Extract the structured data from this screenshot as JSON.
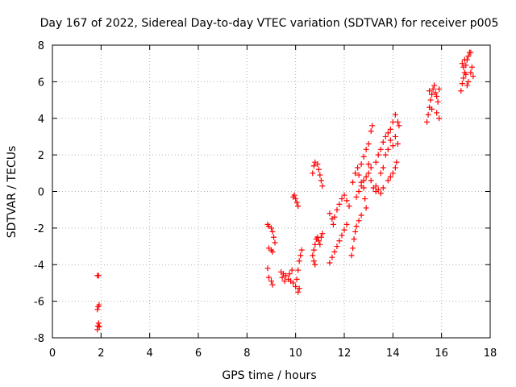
{
  "chart_data": {
    "type": "scatter",
    "title": "Day 167 of 2022, Sidereal Day-to-day VTEC variation (SDTVAR) for receiver p005",
    "xlabel": "GPS time / hours",
    "ylabel": "SDTVAR / TECUs",
    "xlim": [
      0,
      18
    ],
    "ylim": [
      -8,
      8
    ],
    "xticks": [
      "0",
      "2",
      "4",
      "6",
      "8",
      "10",
      "12",
      "14",
      "16",
      "18"
    ],
    "yticks": [
      "-8",
      "-6",
      "-4",
      "-2",
      "0",
      "2",
      "4",
      "6",
      "8"
    ],
    "grid": true,
    "marker": "plus",
    "color": "#ff0000",
    "series": [
      {
        "name": "p005",
        "points": [
          [
            1.85,
            -4.6
          ],
          [
            1.9,
            -4.6
          ],
          [
            1.88,
            -6.3
          ],
          [
            1.92,
            -6.2
          ],
          [
            1.85,
            -6.45
          ],
          [
            1.9,
            -7.2
          ],
          [
            1.87,
            -7.35
          ],
          [
            1.93,
            -7.4
          ],
          [
            1.85,
            -7.55
          ],
          [
            8.85,
            -1.8
          ],
          [
            8.9,
            -1.9
          ],
          [
            9.0,
            -2.0
          ],
          [
            9.05,
            -2.2
          ],
          [
            9.1,
            -2.5
          ],
          [
            9.15,
            -2.8
          ],
          [
            8.9,
            -3.1
          ],
          [
            9.0,
            -3.2
          ],
          [
            9.05,
            -3.3
          ],
          [
            8.85,
            -4.2
          ],
          [
            8.9,
            -4.7
          ],
          [
            9.0,
            -4.9
          ],
          [
            9.05,
            -5.1
          ],
          [
            9.4,
            -4.4
          ],
          [
            9.5,
            -4.5
          ],
          [
            9.6,
            -4.6
          ],
          [
            9.7,
            -4.8
          ],
          [
            9.8,
            -4.9
          ],
          [
            9.9,
            -5.0
          ],
          [
            9.45,
            -4.7
          ],
          [
            9.55,
            -4.9
          ],
          [
            9.75,
            -4.5
          ],
          [
            9.85,
            -4.3
          ],
          [
            10.0,
            -5.2
          ],
          [
            10.1,
            -5.5
          ],
          [
            10.15,
            -5.3
          ],
          [
            10.05,
            -4.8
          ],
          [
            10.1,
            -4.3
          ],
          [
            10.15,
            -3.8
          ],
          [
            10.2,
            -3.5
          ],
          [
            10.25,
            -3.2
          ],
          [
            9.9,
            -0.3
          ],
          [
            9.95,
            -0.2
          ],
          [
            10.0,
            -0.4
          ],
          [
            10.05,
            -0.6
          ],
          [
            10.1,
            -0.8
          ],
          [
            10.7,
            -3.5
          ],
          [
            10.75,
            -3.2
          ],
          [
            10.8,
            -2.9
          ],
          [
            10.85,
            -2.6
          ],
          [
            10.9,
            -2.5
          ],
          [
            10.95,
            -2.7
          ],
          [
            11.0,
            -2.9
          ],
          [
            11.05,
            -2.5
          ],
          [
            11.1,
            -2.3
          ],
          [
            10.75,
            -3.8
          ],
          [
            10.8,
            -4.0
          ],
          [
            10.7,
            1.0
          ],
          [
            10.75,
            1.4
          ],
          [
            10.8,
            1.6
          ],
          [
            10.9,
            1.5
          ],
          [
            10.95,
            1.2
          ],
          [
            11.0,
            0.9
          ],
          [
            11.05,
            0.6
          ],
          [
            11.1,
            0.3
          ],
          [
            11.4,
            -3.9
          ],
          [
            11.5,
            -3.6
          ],
          [
            11.6,
            -3.3
          ],
          [
            11.7,
            -3.0
          ],
          [
            11.8,
            -2.7
          ],
          [
            11.9,
            -2.4
          ],
          [
            12.0,
            -2.1
          ],
          [
            12.1,
            -1.8
          ],
          [
            11.4,
            -1.2
          ],
          [
            11.5,
            -1.5
          ],
          [
            11.55,
            -1.8
          ],
          [
            11.6,
            -1.4
          ],
          [
            11.7,
            -1.0
          ],
          [
            11.8,
            -0.7
          ],
          [
            11.9,
            -0.4
          ],
          [
            12.0,
            -0.2
          ],
          [
            12.1,
            -0.5
          ],
          [
            12.2,
            -0.8
          ],
          [
            12.3,
            -3.5
          ],
          [
            12.35,
            -3.1
          ],
          [
            12.4,
            -2.6
          ],
          [
            12.45,
            -2.2
          ],
          [
            12.5,
            -1.9
          ],
          [
            12.6,
            -1.6
          ],
          [
            12.7,
            -1.3
          ],
          [
            12.35,
            0.5
          ],
          [
            12.45,
            1.0
          ],
          [
            12.55,
            1.3
          ],
          [
            12.6,
            0.9
          ],
          [
            12.7,
            0.5
          ],
          [
            12.8,
            0.2
          ],
          [
            12.85,
            -0.4
          ],
          [
            12.9,
            -0.9
          ],
          [
            12.5,
            -0.3
          ],
          [
            12.6,
            0.0
          ],
          [
            12.7,
            0.3
          ],
          [
            12.8,
            0.6
          ],
          [
            12.9,
            0.8
          ],
          [
            13.0,
            1.0
          ],
          [
            13.1,
            0.6
          ],
          [
            13.2,
            0.2
          ],
          [
            13.3,
            0.0
          ],
          [
            12.7,
            1.5
          ],
          [
            12.8,
            1.9
          ],
          [
            12.9,
            2.3
          ],
          [
            13.0,
            2.6
          ],
          [
            13.1,
            3.3
          ],
          [
            13.15,
            3.6
          ],
          [
            13.0,
            1.5
          ],
          [
            13.1,
            1.3
          ],
          [
            13.3,
            1.6
          ],
          [
            13.4,
            2.0
          ],
          [
            13.5,
            2.3
          ],
          [
            13.6,
            2.7
          ],
          [
            13.7,
            3.0
          ],
          [
            13.8,
            3.2
          ],
          [
            13.9,
            2.8
          ],
          [
            14.0,
            2.5
          ],
          [
            14.1,
            3.0
          ],
          [
            14.2,
            2.6
          ],
          [
            13.5,
            1.0
          ],
          [
            13.6,
            1.3
          ],
          [
            13.7,
            2.0
          ],
          [
            13.8,
            2.3
          ],
          [
            13.9,
            3.4
          ],
          [
            14.0,
            3.8
          ],
          [
            14.1,
            4.2
          ],
          [
            14.2,
            3.8
          ],
          [
            14.25,
            3.6
          ],
          [
            13.3,
            0.3
          ],
          [
            13.4,
            0.1
          ],
          [
            13.5,
            -0.1
          ],
          [
            13.6,
            0.2
          ],
          [
            13.8,
            0.6
          ],
          [
            13.9,
            0.8
          ],
          [
            14.0,
            1.0
          ],
          [
            14.1,
            1.3
          ],
          [
            14.15,
            1.6
          ],
          [
            15.4,
            3.8
          ],
          [
            15.45,
            4.2
          ],
          [
            15.5,
            4.6
          ],
          [
            15.55,
            5.0
          ],
          [
            15.6,
            5.3
          ],
          [
            15.65,
            5.6
          ],
          [
            15.7,
            5.8
          ],
          [
            15.75,
            5.4
          ],
          [
            15.8,
            5.2
          ],
          [
            15.85,
            4.9
          ],
          [
            15.9,
            5.6
          ],
          [
            15.5,
            5.5
          ],
          [
            15.6,
            4.5
          ],
          [
            15.8,
            4.3
          ],
          [
            15.9,
            4.0
          ],
          [
            16.8,
            5.5
          ],
          [
            16.85,
            5.9
          ],
          [
            16.9,
            6.2
          ],
          [
            16.95,
            6.5
          ],
          [
            17.0,
            6.9
          ],
          [
            17.05,
            7.2
          ],
          [
            17.1,
            7.4
          ],
          [
            17.15,
            7.6
          ],
          [
            17.2,
            7.6
          ],
          [
            17.25,
            6.8
          ],
          [
            17.3,
            6.3
          ],
          [
            16.9,
            6.8
          ],
          [
            17.0,
            6.4
          ],
          [
            17.1,
            6.0
          ],
          [
            17.2,
            6.5
          ],
          [
            16.85,
            7.0
          ],
          [
            16.95,
            7.2
          ],
          [
            17.05,
            5.8
          ]
        ]
      }
    ]
  }
}
